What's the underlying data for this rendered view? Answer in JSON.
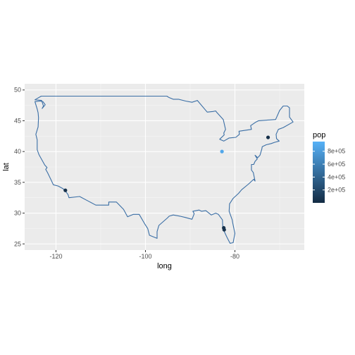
{
  "chart_data": {
    "type": "scatter",
    "xlabel": "long",
    "ylabel": "lat",
    "xlim": [
      -127,
      -64.5
    ],
    "ylim": [
      24,
      51
    ],
    "x_ticks": [
      -120,
      -100,
      -80
    ],
    "x_tick_labels": [
      "-120",
      "-100",
      "-80"
    ],
    "y_ticks": [
      25,
      30,
      35,
      40,
      45,
      50
    ],
    "y_tick_labels": [
      "25",
      "30",
      "35",
      "40",
      "45",
      "50"
    ],
    "grid": true,
    "background_color": "#ebebeb",
    "outline_color": "#3a6ea5",
    "outline": [
      [
        -124.7,
        48.4
      ],
      [
        -123.2,
        48.3
      ],
      [
        -122.8,
        47.4
      ],
      [
        -123.1,
        47.0
      ],
      [
        -122.4,
        47.6
      ],
      [
        -122.9,
        48.1
      ],
      [
        -123.6,
        48.2
      ],
      [
        -124.7,
        48.1
      ],
      [
        -124.2,
        46.9
      ],
      [
        -124.0,
        46.3
      ],
      [
        -123.9,
        45.5
      ],
      [
        -124.0,
        44.0
      ],
      [
        -124.5,
        42.8
      ],
      [
        -124.2,
        41.9
      ],
      [
        -124.2,
        40.3
      ],
      [
        -123.8,
        39.5
      ],
      [
        -122.5,
        37.8
      ],
      [
        -122.0,
        37.4
      ],
      [
        -122.3,
        37.1
      ],
      [
        -121.9,
        36.6
      ],
      [
        -121.1,
        35.4
      ],
      [
        -120.6,
        34.6
      ],
      [
        -119.5,
        34.4
      ],
      [
        -118.5,
        34.0
      ],
      [
        -118.0,
        33.7
      ],
      [
        -117.3,
        33.0
      ],
      [
        -117.1,
        32.5
      ],
      [
        -114.7,
        32.7
      ],
      [
        -111.1,
        31.3
      ],
      [
        -108.2,
        31.3
      ],
      [
        -108.2,
        31.8
      ],
      [
        -106.5,
        31.8
      ],
      [
        -104.9,
        30.6
      ],
      [
        -104.0,
        29.4
      ],
      [
        -102.7,
        29.8
      ],
      [
        -101.4,
        29.8
      ],
      [
        -100.2,
        28.3
      ],
      [
        -99.5,
        27.5
      ],
      [
        -99.1,
        26.4
      ],
      [
        -97.4,
        25.9
      ],
      [
        -97.4,
        27.0
      ],
      [
        -97.0,
        28.0
      ],
      [
        -95.1,
        29.2
      ],
      [
        -94.7,
        29.5
      ],
      [
        -93.8,
        29.7
      ],
      [
        -92.3,
        29.5
      ],
      [
        -91.1,
        29.3
      ],
      [
        -89.6,
        29.0
      ],
      [
        -89.1,
        29.9
      ],
      [
        -89.4,
        30.3
      ],
      [
        -88.0,
        30.5
      ],
      [
        -87.5,
        30.3
      ],
      [
        -86.5,
        30.4
      ],
      [
        -85.3,
        29.7
      ],
      [
        -84.3,
        30.0
      ],
      [
        -83.7,
        29.8
      ],
      [
        -82.8,
        28.9
      ],
      [
        -82.7,
        27.5
      ],
      [
        -81.8,
        26.1
      ],
      [
        -81.1,
        25.1
      ],
      [
        -80.4,
        25.2
      ],
      [
        -80.0,
        26.7
      ],
      [
        -80.5,
        28.4
      ],
      [
        -80.6,
        28.9
      ],
      [
        -81.3,
        30.3
      ],
      [
        -81.2,
        31.5
      ],
      [
        -80.4,
        32.4
      ],
      [
        -79.2,
        33.2
      ],
      [
        -78.5,
        33.8
      ],
      [
        -77.0,
        34.7
      ],
      [
        -75.8,
        35.5
      ],
      [
        -75.5,
        35.2
      ],
      [
        -75.9,
        36.6
      ],
      [
        -76.3,
        37.0
      ],
      [
        -76.3,
        37.9
      ],
      [
        -75.8,
        37.9
      ],
      [
        -75.5,
        38.4
      ],
      [
        -75.0,
        38.8
      ],
      [
        -75.5,
        39.4
      ],
      [
        -74.9,
        39.0
      ],
      [
        -74.4,
        39.4
      ],
      [
        -74.0,
        40.4
      ],
      [
        -73.9,
        40.8
      ],
      [
        -73.0,
        41.1
      ],
      [
        -71.9,
        41.3
      ],
      [
        -71.1,
        41.5
      ],
      [
        -70.1,
        41.7
      ],
      [
        -70.7,
        42.1
      ],
      [
        -70.8,
        42.8
      ],
      [
        -70.3,
        43.6
      ],
      [
        -69.2,
        43.9
      ],
      [
        -67.0,
        44.8
      ],
      [
        -67.8,
        45.6
      ],
      [
        -67.8,
        47.1
      ],
      [
        -68.3,
        47.4
      ],
      [
        -69.2,
        47.4
      ],
      [
        -70.0,
        46.7
      ],
      [
        -70.9,
        45.2
      ],
      [
        -74.7,
        45.0
      ],
      [
        -75.3,
        44.8
      ],
      [
        -76.5,
        44.2
      ],
      [
        -76.3,
        43.6
      ],
      [
        -79.1,
        43.3
      ],
      [
        -79.0,
        42.8
      ],
      [
        -79.8,
        42.3
      ],
      [
        -81.3,
        42.2
      ],
      [
        -82.5,
        41.7
      ],
      [
        -83.4,
        42.0
      ],
      [
        -82.4,
        42.7
      ],
      [
        -82.5,
        43.0
      ],
      [
        -82.1,
        43.6
      ],
      [
        -82.6,
        45.2
      ],
      [
        -84.1,
        46.4
      ],
      [
        -84.3,
        46.6
      ],
      [
        -84.9,
        46.5
      ],
      [
        -86.2,
        46.4
      ],
      [
        -88.4,
        48.3
      ],
      [
        -89.6,
        48.0
      ],
      [
        -91.0,
        48.2
      ],
      [
        -92.6,
        48.5
      ],
      [
        -93.8,
        48.5
      ],
      [
        -94.8,
        48.8
      ],
      [
        -95.2,
        49.0
      ],
      [
        -123.3,
        49.0
      ],
      [
        -124.7,
        48.4
      ]
    ],
    "points": [
      {
        "x": -117.9,
        "y": 33.7,
        "pop": 35000
      },
      {
        "x": -82.9,
        "y": 40.0,
        "pop": 880000
      },
      {
        "x": -82.5,
        "y": 27.6,
        "pop": 40000
      },
      {
        "x": -82.4,
        "y": 27.3,
        "pop": 50000
      },
      {
        "x": -72.6,
        "y": 42.3,
        "pop": 30000
      }
    ],
    "legend": {
      "title": "pop",
      "placement": "right",
      "min": 0,
      "max": 950000,
      "ticks": [
        200000,
        400000,
        600000,
        800000
      ],
      "tick_labels": [
        "2e+05",
        "4e+05",
        "6e+05",
        "8e+05"
      ],
      "color_low": "#132b43",
      "color_high": "#56b1f7"
    }
  }
}
